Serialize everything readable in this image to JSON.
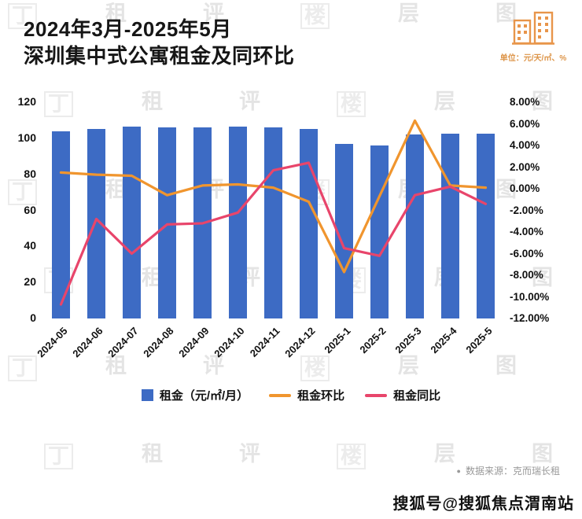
{
  "header": {
    "title_line1": "2024年3月-2025年5月",
    "title_line2": "深圳集中式公寓租金及同环比",
    "unit_note": "单位：元/天/㎡、%",
    "icon": "building-icon",
    "icon_color": "#e8954a"
  },
  "chart_data": {
    "type": "combo",
    "title": "2024年3月-2025年5月深圳集中式公寓租金及同环比",
    "grid": false,
    "legend_position": "bottom",
    "categories": [
      "2024-05",
      "2024-06",
      "2024-07",
      "2024-08",
      "2024-09",
      "2024-10",
      "2024-11",
      "2024-12",
      "2025-1",
      "2025-2",
      "2025-3",
      "2025-4",
      "2025-5"
    ],
    "series": [
      {
        "name": "租金（元/㎡/月）",
        "type": "bar",
        "axis": "left",
        "color": "#3d6bc4",
        "values": [
          104,
          105,
          106.5,
          106,
          106,
          106.5,
          106,
          105,
          97,
          96,
          102,
          102.5,
          102.5
        ]
      },
      {
        "name": "租金环比",
        "type": "line",
        "axis": "right",
        "color": "#f0952e",
        "values": [
          1.5,
          1.3,
          1.2,
          -0.6,
          0.3,
          0.4,
          0.1,
          -1.2,
          -7.7,
          -0.7,
          6.3,
          0.3,
          0.1
        ]
      },
      {
        "name": "租金同比",
        "type": "line",
        "axis": "right",
        "color": "#e8456b",
        "values": [
          -10.7,
          -2.8,
          -6.0,
          -3.3,
          -3.2,
          -2.2,
          1.7,
          2.4,
          -5.5,
          -6.2,
          -0.6,
          0.2,
          -1.4
        ]
      }
    ],
    "left_axis": {
      "min": 0,
      "max": 120,
      "ticks": [
        120,
        100,
        80,
        60,
        40,
        20,
        0
      ]
    },
    "right_axis": {
      "min": -12,
      "max": 8,
      "ticks": [
        "8.00%",
        "6.00%",
        "4.00%",
        "2.00%",
        "0.00%",
        "-2.00%",
        "-4.00%",
        "-6.00%",
        "-8.00%",
        "-10.00%",
        "-12.00%"
      ]
    }
  },
  "source": {
    "bullet": "●",
    "text": "数据来源：克而瑞长租"
  },
  "footer": {
    "text": "搜狐号@搜狐焦点渭南站"
  },
  "watermark": {
    "chars": [
      "丁",
      "租",
      "评",
      "楼",
      "层",
      "图"
    ]
  }
}
